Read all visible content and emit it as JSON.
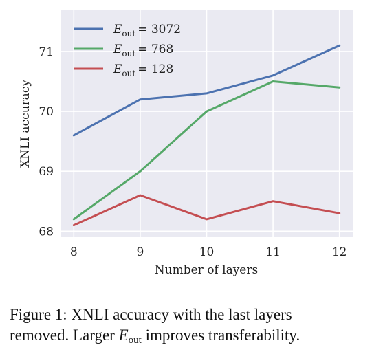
{
  "chart_data": {
    "type": "line",
    "title": "",
    "xlabel": "Number of layers",
    "ylabel": "XNLI accuracy",
    "x": [
      8,
      9,
      10,
      11,
      12
    ],
    "xlim": [
      7.8,
      12.2
    ],
    "ylim": [
      67.9,
      71.7
    ],
    "xticks": [
      "8",
      "9",
      "10",
      "11",
      "12"
    ],
    "yticks": [
      "68",
      "69",
      "70",
      "71"
    ],
    "grid": true,
    "legend_position": "top-left",
    "series": [
      {
        "name": "E_out = 3072",
        "legend_base": "E",
        "legend_sub": "out",
        "legend_value": "= 3072",
        "color": "#4c72b0",
        "values": [
          69.6,
          70.2,
          70.3,
          70.6,
          71.1
        ]
      },
      {
        "name": "E_out = 768",
        "legend_base": "E",
        "legend_sub": "out",
        "legend_value": "= 768",
        "color": "#55a868",
        "values": [
          68.2,
          69.0,
          70.0,
          70.5,
          70.4
        ]
      },
      {
        "name": "E_out = 128",
        "legend_base": "E",
        "legend_sub": "out",
        "legend_value": "= 128",
        "color": "#c44e52",
        "values": [
          68.1,
          68.6,
          68.2,
          68.5,
          68.3
        ]
      }
    ]
  },
  "caption": {
    "prefix": "Figure 1:",
    "line1": " XNLI accuracy with the last layers",
    "line2_before": "removed. Larger ",
    "var": "E",
    "sub": "out",
    "line2_after": " improves transferability."
  },
  "style": {
    "plot_background": "#eaeaf2",
    "grid_color": "#ffffff"
  }
}
